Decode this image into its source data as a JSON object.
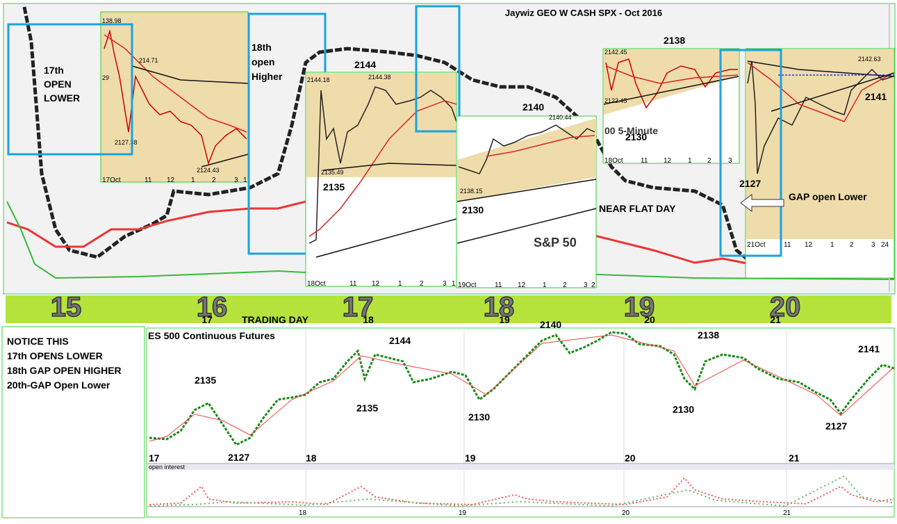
{
  "header": {
    "title": "Jaywiz GEO W CASH SPX - Oct 2016"
  },
  "day_bar": {
    "big_days": [
      "15",
      "16",
      "17",
      "18",
      "19",
      "20"
    ],
    "trading_days": [
      "17",
      "18",
      "19",
      "20",
      "21"
    ],
    "label": "TRADING DAY"
  },
  "boxes": [
    {
      "text": [
        "17th",
        "OPEN",
        "LOWER"
      ]
    },
    {
      "text": [
        "18th",
        "open",
        "Higher"
      ]
    }
  ],
  "insets": [
    {
      "labels": [
        "138.98",
        "214.71",
        "29",
        "2127.38",
        "2124.43"
      ],
      "axis": [
        "17Oct",
        "11",
        "12",
        "1",
        "2",
        "3",
        "1"
      ]
    },
    {
      "labels": [
        "2144.18",
        "2144.38",
        "2135.49"
      ],
      "axis": [
        "18Oct",
        "11",
        "12",
        "1",
        "2",
        "3",
        "1"
      ]
    },
    {
      "labels": [
        "2140.44",
        "2138.15",
        "S&P 50"
      ],
      "axis": [
        "19Oct",
        "11",
        "12",
        "1",
        "2",
        "3",
        "2"
      ]
    },
    {
      "labels": [
        "2142.45",
        "2122.45",
        "00 5-Minute"
      ],
      "axis": [
        "18Oct",
        "11",
        "12",
        "1",
        "2",
        "3"
      ]
    },
    {
      "labels": [
        "2142.63"
      ],
      "axis": [
        "21Oct",
        "11",
        "12",
        "1",
        "2",
        "3",
        "24"
      ]
    }
  ],
  "callouts": [
    "2144",
    "2135",
    "2140",
    "2130",
    "2138",
    "2130",
    "NEAR FLAT DAY",
    "2141",
    "2127",
    "GAP open Lower"
  ],
  "notes": [
    "NOTICE THIS",
    "17th OPENS LOWER",
    "18th GAP OPEN HIGHER",
    "20th-GAP Open Lower"
  ],
  "futures": {
    "title": "ES 500 Continuous Futures",
    "labels": [
      "2135",
      "2127",
      "2144",
      "2135",
      "2130",
      "2140",
      "2130",
      "2138",
      "2127",
      "2141"
    ],
    "x_labels": [
      "17",
      "18",
      "19",
      "20",
      "21"
    ],
    "volume_label": "open interest",
    "volume_x_labels": [
      "18",
      "19",
      "20",
      "21"
    ]
  }
}
